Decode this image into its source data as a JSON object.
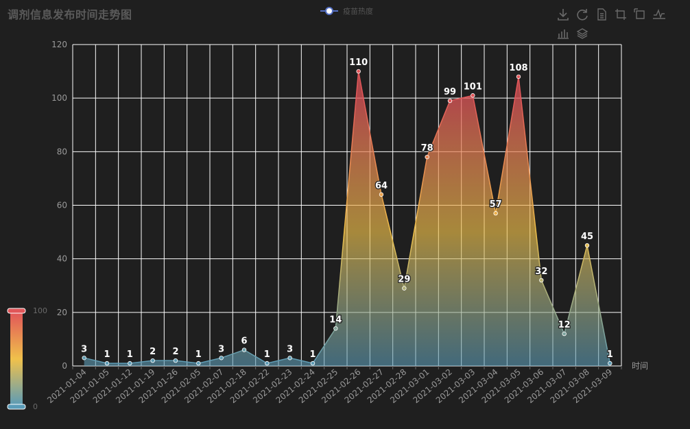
{
  "chart_title": "调剂信息发布时间走势图",
  "legend_label": "疫苗热度",
  "toolbox": [
    {
      "name": "save-image-icon"
    },
    {
      "name": "restore-icon"
    },
    {
      "name": "data-view-icon"
    },
    {
      "name": "zoom-icon"
    },
    {
      "name": "zoom-reset-icon"
    },
    {
      "name": "line-chart-icon"
    },
    {
      "name": "bar-chart-icon"
    },
    {
      "name": "stack-icon"
    }
  ],
  "visual_map": {
    "max_label": "100",
    "min_label": "0",
    "colors": [
      "#e15659",
      "#f0c14b",
      "#5a9bb8"
    ]
  },
  "colors": {
    "background": "#1f1f1f",
    "grid": "#ffffff",
    "axis_text": "#9a9a9a",
    "legend_line": "#5470c6"
  },
  "chart_data": {
    "type": "area",
    "title": "调剂信息发布时间走势图",
    "xlabel": "时间",
    "ylabel": "",
    "ylim": [
      0,
      120
    ],
    "yticks": [
      "0",
      "20",
      "40",
      "60",
      "80",
      "100",
      "120"
    ],
    "grid": true,
    "legend_position": "top-center",
    "categories": [
      "2021-01-04",
      "2021-01-05",
      "2021-01-12",
      "2021-01-19",
      "2021-01-26",
      "2021-02-05",
      "2021-02-07",
      "2021-02-18",
      "2021-02-22",
      "2021-02-23",
      "2021-02-24",
      "2021-02-25",
      "2021-02-26",
      "2021-02-27",
      "2021-02-28",
      "2021-03-01",
      "2021-03-02",
      "2021-03-03",
      "2021-03-04",
      "2021-03-05",
      "2021-03-06",
      "2021-03-07",
      "2021-03-08",
      "2021-03-09"
    ],
    "series": [
      {
        "name": "疫苗热度",
        "values": [
          3,
          1,
          1,
          2,
          2,
          1,
          3,
          6,
          1,
          3,
          1,
          14,
          110,
          64,
          29,
          78,
          99,
          101,
          57,
          108,
          32,
          12,
          45,
          1
        ]
      }
    ]
  }
}
